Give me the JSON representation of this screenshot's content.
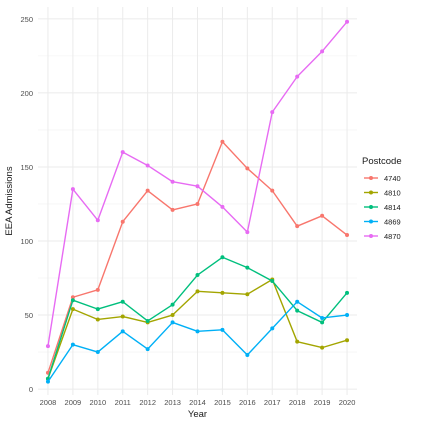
{
  "chart_data": {
    "type": "line",
    "xlabel": "Year",
    "ylabel": "EEA Admissions",
    "x": [
      2008,
      2009,
      2010,
      2011,
      2012,
      2013,
      2014,
      2015,
      2016,
      2017,
      2018,
      2019,
      2020
    ],
    "xlim": [
      2007.6,
      2020.4
    ],
    "ylim": [
      -4,
      258
    ],
    "yticks": [
      0,
      50,
      100,
      150,
      200,
      250
    ],
    "grid": true,
    "legend": {
      "title": "Postcode",
      "position": "right"
    },
    "series": [
      {
        "name": "4740",
        "color": "#F8766D",
        "values": [
          11,
          62,
          67,
          113,
          134,
          121,
          125,
          167,
          149,
          134,
          110,
          117,
          104
        ]
      },
      {
        "name": "4810",
        "color": "#A3A500",
        "values": [
          7,
          54,
          47,
          49,
          45,
          50,
          66,
          65,
          64,
          74,
          32,
          28,
          33
        ]
      },
      {
        "name": "4814",
        "color": "#00BF7D",
        "values": [
          7,
          60,
          54,
          59,
          46,
          57,
          77,
          89,
          82,
          73,
          53,
          45,
          65
        ]
      },
      {
        "name": "4869",
        "color": "#00B0F6",
        "values": [
          5,
          30,
          25,
          39,
          27,
          45,
          39,
          40,
          23,
          41,
          59,
          48,
          50
        ]
      },
      {
        "name": "4870",
        "color": "#E76BF3",
        "values": [
          29,
          135,
          114,
          160,
          151,
          140,
          137,
          123,
          106,
          187,
          211,
          228,
          248
        ]
      }
    ]
  }
}
